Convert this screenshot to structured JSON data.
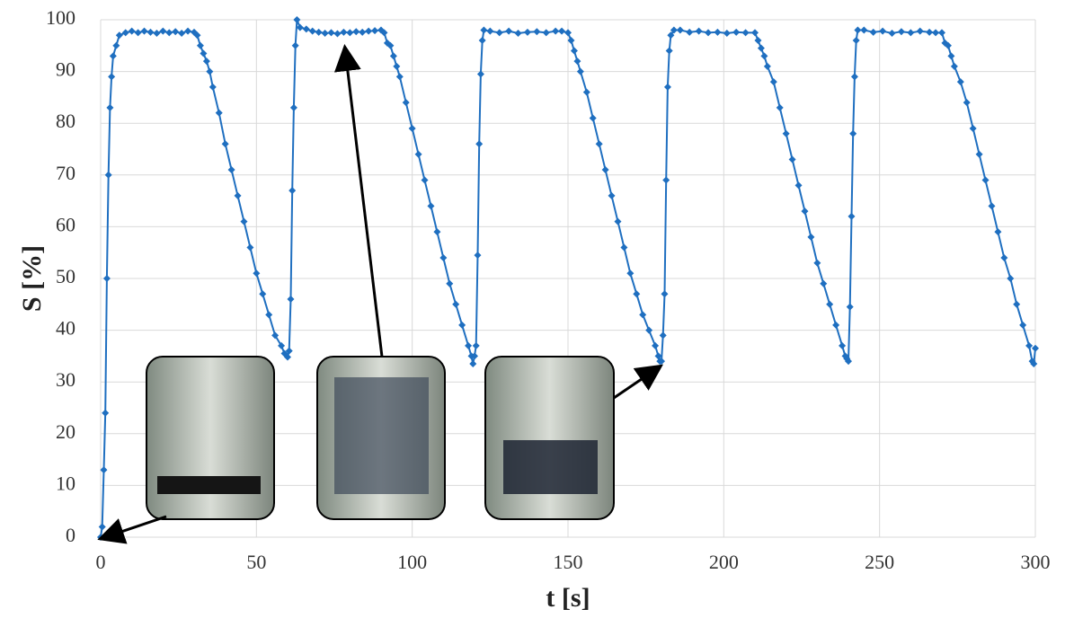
{
  "chart_data": {
    "type": "line",
    "x_label": "t [s]",
    "y_label": "S [%]",
    "xlim": [
      0,
      300
    ],
    "xticks": [
      0,
      50,
      100,
      150,
      200,
      250,
      300
    ],
    "ylim": [
      0,
      100
    ],
    "yticks": [
      0,
      10,
      20,
      30,
      40,
      50,
      60,
      70,
      80,
      90,
      100
    ],
    "grid": true,
    "series": [
      {
        "color": "#1f6fc0",
        "x": [
          0,
          0.5,
          1,
          1.5,
          2,
          2.5,
          3,
          3.5,
          4,
          5,
          6,
          8,
          10,
          12,
          14,
          16,
          18,
          20,
          22,
          24,
          26,
          28,
          30,
          31,
          32,
          33,
          34,
          35,
          36,
          38,
          40,
          42,
          44,
          46,
          48,
          50,
          52,
          54,
          56,
          58,
          59,
          60,
          60.5,
          61,
          61.5,
          62,
          62.5,
          63,
          64,
          66,
          68,
          70,
          72,
          74,
          76,
          78,
          80,
          82,
          84,
          86,
          88,
          90,
          91,
          92,
          93,
          94,
          95,
          96,
          98,
          100,
          102,
          104,
          106,
          108,
          110,
          112,
          114,
          116,
          118,
          119,
          119.5,
          120,
          120.5,
          121,
          121.5,
          122,
          122.5,
          123,
          125,
          128,
          131,
          134,
          137,
          140,
          143,
          146,
          148,
          150,
          151,
          152,
          153,
          154,
          156,
          158,
          160,
          162,
          164,
          166,
          168,
          170,
          172,
          174,
          176,
          178,
          179,
          179.5,
          180,
          180.5,
          181,
          181.5,
          182,
          182.5,
          183,
          184,
          186,
          189,
          192,
          195,
          198,
          201,
          204,
          207,
          210,
          211,
          212,
          213,
          214,
          216,
          218,
          220,
          222,
          224,
          226,
          228,
          230,
          232,
          234,
          236,
          238,
          239,
          239.5,
          240,
          240.5,
          241,
          241.5,
          242,
          242.5,
          243,
          245,
          248,
          251,
          254,
          257,
          260,
          263,
          266,
          268,
          270,
          271,
          272,
          273,
          274,
          276,
          278,
          280,
          282,
          284,
          286,
          288,
          290,
          292,
          294,
          296,
          298,
          299,
          299.5,
          300
        ],
        "values": [
          0,
          2,
          13,
          24,
          50,
          70,
          83,
          89,
          93,
          95,
          97,
          97.5,
          97.8,
          97.5,
          97.8,
          97.6,
          97.4,
          97.8,
          97.5,
          97.7,
          97.4,
          97.8,
          97.6,
          97,
          95,
          93.5,
          92,
          90,
          87,
          82,
          76,
          71,
          66,
          61,
          56,
          51,
          47,
          43,
          39,
          37,
          35.5,
          34.8,
          36,
          46,
          67,
          83,
          95,
          100,
          98.5,
          98.2,
          97.8,
          97.6,
          97.4,
          97.5,
          97.3,
          97.6,
          97.5,
          97.7,
          97.6,
          97.8,
          97.9,
          98,
          97.5,
          95.5,
          95,
          93,
          91,
          89,
          84,
          79,
          74,
          69,
          64,
          59,
          54,
          49,
          45,
          41,
          37,
          35,
          33.5,
          35,
          37,
          54.5,
          76,
          89.5,
          96,
          98,
          97.8,
          97.5,
          97.8,
          97.4,
          97.6,
          97.7,
          97.5,
          97.8,
          97.8,
          97.5,
          96,
          94,
          92,
          90,
          86,
          81,
          76,
          71,
          66,
          61,
          56,
          51,
          47,
          43,
          40,
          37,
          35,
          34,
          34,
          39,
          47,
          69,
          87,
          94,
          97,
          98,
          98,
          97.6,
          97.8,
          97.5,
          97.6,
          97.4,
          97.6,
          97.5,
          97.5,
          96,
          94.5,
          93,
          91,
          88,
          83,
          78,
          73,
          68,
          63,
          58,
          53,
          49,
          45,
          41,
          37,
          35,
          34.5,
          34,
          44.5,
          62,
          78,
          89,
          96,
          98,
          98,
          97.6,
          97.8,
          97.4,
          97.7,
          97.5,
          97.8,
          97.6,
          97.5,
          97.5,
          95.5,
          95,
          93,
          91,
          88,
          84,
          79,
          74,
          69,
          64,
          59,
          54,
          50,
          45,
          41,
          37,
          34,
          33.5,
          36.5
        ]
      }
    ]
  }
}
